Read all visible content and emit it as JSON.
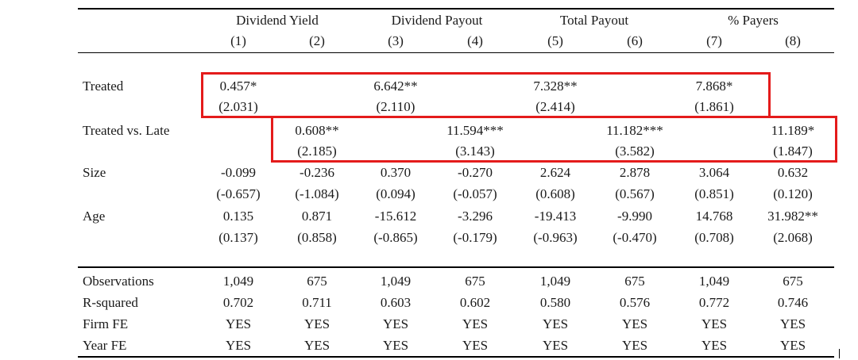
{
  "groups": [
    "Dividend Yield",
    "Dividend Payout",
    "Total Payout",
    "% Payers"
  ],
  "columns": [
    "(1)",
    "(2)",
    "(3)",
    "(4)",
    "(5)",
    "(6)",
    "(7)",
    "(8)"
  ],
  "treated": {
    "label": "Treated",
    "coef": [
      "0.457*",
      "",
      "6.642**",
      "",
      "7.328**",
      "",
      "7.868*",
      ""
    ],
    "tstat": [
      "(2.031)",
      "",
      "(2.110)",
      "",
      "(2.414)",
      "",
      "(1.861)",
      ""
    ]
  },
  "treated_vs_late": {
    "label": "Treated vs. Late",
    "coef": [
      "",
      "0.608**",
      "",
      "11.594***",
      "",
      "11.182***",
      "",
      "11.189*"
    ],
    "tstat": [
      "",
      "(2.185)",
      "",
      "(3.143)",
      "",
      "(3.582)",
      "",
      "(1.847)"
    ]
  },
  "size": {
    "label": "Size",
    "coef": [
      "-0.099",
      "-0.236",
      "0.370",
      "-0.270",
      "2.624",
      "2.878",
      "3.064",
      "0.632"
    ],
    "tstat": [
      "(-0.657)",
      "(-1.084)",
      "(0.094)",
      "(-0.057)",
      "(0.608)",
      "(0.567)",
      "(0.851)",
      "(0.120)"
    ]
  },
  "age": {
    "label": "Age",
    "coef": [
      "0.135",
      "0.871",
      "-15.612",
      "-3.296",
      "-19.413",
      "-9.990",
      "14.768",
      "31.982**"
    ],
    "tstat": [
      "(0.137)",
      "(0.858)",
      "(-0.865)",
      "(-0.179)",
      "(-0.963)",
      "(-0.470)",
      "(0.708)",
      "(2.068)"
    ]
  },
  "footer": [
    {
      "label": "Observations",
      "values": [
        "1,049",
        "675",
        "1,049",
        "675",
        "1,049",
        "675",
        "1,049",
        "675"
      ]
    },
    {
      "label": "R-squared",
      "values": [
        "0.702",
        "0.711",
        "0.603",
        "0.602",
        "0.580",
        "0.576",
        "0.772",
        "0.746"
      ]
    },
    {
      "label": "Firm FE",
      "values": [
        "YES",
        "YES",
        "YES",
        "YES",
        "YES",
        "YES",
        "YES",
        "YES"
      ]
    },
    {
      "label": "Year FE",
      "values": [
        "YES",
        "YES",
        "YES",
        "YES",
        "YES",
        "YES",
        "YES",
        "YES"
      ]
    }
  ],
  "highlight_color": "#e41b1b"
}
